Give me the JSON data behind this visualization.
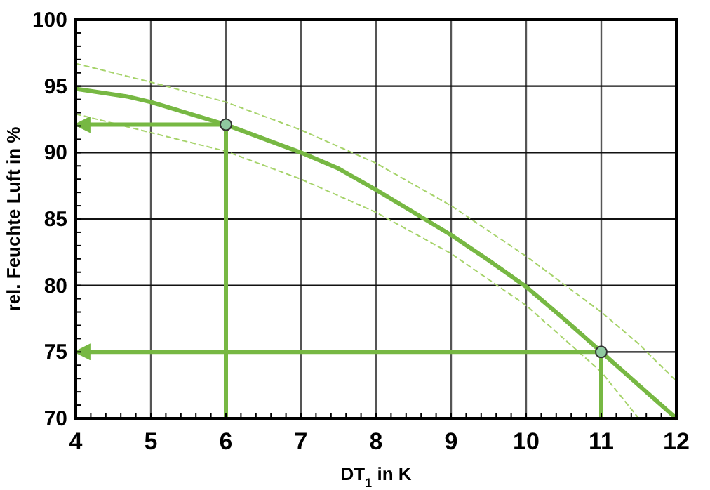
{
  "chart_data": {
    "type": "line",
    "xlabel": "DT$_{1}$ in K",
    "ylabel": "rel. Feuchte Luft in %",
    "xlim": [
      4,
      12
    ],
    "ylim": [
      70,
      100
    ],
    "xticks": [
      4,
      {
        "value": 4.2,
        "label": null
      },
      {
        "value": 4.4,
        "label": null
      },
      {
        "value": 4.6,
        "label": null
      },
      {
        "value": 4.8,
        "label": null
      },
      5,
      {
        "value": 5.2,
        "label": null
      },
      {
        "value": 5.4,
        "label": null
      },
      {
        "value": 5.6,
        "label": null
      },
      {
        "value": 5.8,
        "label": null
      },
      6,
      {
        "value": 6.2,
        "label": null
      },
      {
        "value": 6.4,
        "label": null
      },
      {
        "value": 6.6,
        "label": null
      },
      {
        "value": 6.8,
        "label": null
      },
      7,
      {
        "value": 7.2,
        "label": null
      },
      {
        "value": 7.4,
        "label": null
      },
      {
        "value": 7.6,
        "label": null
      },
      {
        "value": 7.8,
        "label": null
      },
      8,
      {
        "value": 8.2,
        "label": null
      },
      {
        "value": 8.4,
        "label": null
      },
      {
        "value": 8.6,
        "label": null
      },
      {
        "value": 8.8,
        "label": null
      },
      9,
      {
        "value": 9.2,
        "label": null
      },
      {
        "value": 9.4,
        "label": null
      },
      {
        "value": 9.6,
        "label": null
      },
      {
        "value": 9.8,
        "label": null
      },
      10,
      {
        "value": 10.2,
        "label": null
      },
      {
        "value": 10.4,
        "label": null
      },
      {
        "value": 10.6,
        "label": null
      },
      {
        "value": 10.8,
        "label": null
      },
      11,
      {
        "value": 11.2,
        "label": null
      },
      {
        "value": 11.4,
        "label": null
      },
      {
        "value": 11.6,
        "label": null
      },
      {
        "value": 11.8,
        "label": null
      },
      12
    ],
    "yticks": [
      70,
      {
        "value": 71,
        "label": null
      },
      {
        "value": 72,
        "label": null
      },
      {
        "value": 73,
        "label": null
      },
      {
        "value": 74,
        "label": null
      },
      75,
      {
        "value": 76,
        "label": null
      },
      {
        "value": 77,
        "label": null
      },
      {
        "value": 78,
        "label": null
      },
      {
        "value": 79,
        "label": null
      },
      80,
      {
        "value": 81,
        "label": null
      },
      {
        "value": 82,
        "label": null
      },
      {
        "value": 83,
        "label": null
      },
      {
        "value": 84,
        "label": null
      },
      85,
      {
        "value": 86,
        "label": null
      },
      {
        "value": 87,
        "label": null
      },
      {
        "value": 88,
        "label": null
      },
      {
        "value": 89,
        "label": null
      },
      90,
      {
        "value": 91,
        "label": null
      },
      {
        "value": 92,
        "label": null
      },
      {
        "value": 93,
        "label": null
      },
      {
        "value": 94,
        "label": null
      },
      95,
      {
        "value": 96,
        "label": null
      },
      {
        "value": 97,
        "label": null
      },
      {
        "value": 98,
        "label": null
      },
      {
        "value": 99,
        "label": null
      },
      100
    ],
    "grid": true,
    "series": [
      {
        "color": "#a6d36a",
        "line_style": "dashed",
        "x": [
          4,
          5,
          6,
          7,
          8,
          9,
          10,
          11,
          11.5,
          12
        ],
        "values": [
          96.7,
          95.3,
          93.8,
          91.7,
          89.2,
          86,
          82.2,
          78,
          75.6,
          72.8
        ]
      },
      {
        "color": "#a6d36a",
        "line_style": "dashed",
        "x": [
          4,
          5,
          6,
          7,
          8,
          9,
          10,
          11,
          11.5
        ],
        "values": [
          92.9,
          91.5,
          90.1,
          88,
          85.5,
          82.4,
          78.5,
          73.5,
          70
        ]
      },
      {
        "color": "#77b843",
        "line_style": "solid",
        "x": [
          4,
          4.7,
          5,
          6,
          7,
          7.5,
          8,
          8.5,
          9,
          9.5,
          10,
          10.5,
          11,
          11.5,
          12
        ],
        "values": [
          94.8,
          94.2,
          93.8,
          92.1,
          90,
          88.8,
          87.2,
          85.5,
          83.8,
          81.9,
          79.9,
          77.5,
          75,
          72.5,
          70
        ]
      },
      {
        "color": "#77b843",
        "line_style": "solid",
        "x": [
          6,
          6,
          4.15
        ],
        "values": [
          70,
          92.1,
          92.1
        ]
      },
      {
        "color": "#77b843",
        "line_style": "solid",
        "x": [
          11,
          11,
          4.15
        ],
        "values": [
          70,
          75,
          75
        ]
      },
      {
        "type": "scatter",
        "color": "#8fc9a0",
        "marker": "circle",
        "x": [
          6,
          11
        ],
        "values": [
          92.1,
          75
        ]
      }
    ]
  }
}
